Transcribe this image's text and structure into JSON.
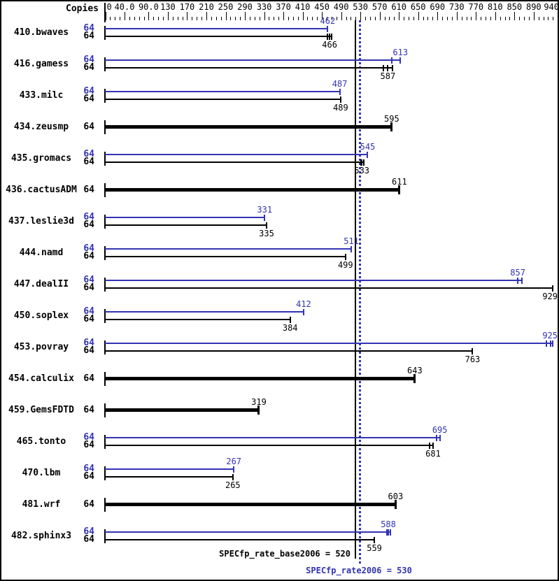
{
  "colors": {
    "peak_blue": "#3333b4",
    "black": "#000000",
    "background": "#ffffff"
  },
  "chart_data": {
    "type": "bar",
    "orientation": "horizontal",
    "copies_header": "Copies",
    "xlim": [
      0,
      940
    ],
    "grid": false,
    "minor_tick_step": 10,
    "x_tick_labels": [
      {
        "v": 0,
        "t": "0"
      },
      {
        "v": 40,
        "t": "40.0"
      },
      {
        "v": 90,
        "t": "90.0"
      },
      {
        "v": 130,
        "t": "130"
      },
      {
        "v": 170,
        "t": "170"
      },
      {
        "v": 210,
        "t": "210"
      },
      {
        "v": 250,
        "t": "250"
      },
      {
        "v": 290,
        "t": "290"
      },
      {
        "v": 330,
        "t": "330"
      },
      {
        "v": 370,
        "t": "370"
      },
      {
        "v": 410,
        "t": "410"
      },
      {
        "v": 450,
        "t": "450"
      },
      {
        "v": 490,
        "t": "490"
      },
      {
        "v": 530,
        "t": "530"
      },
      {
        "v": 570,
        "t": "570"
      },
      {
        "v": 610,
        "t": "610"
      },
      {
        "v": 650,
        "t": "650"
      },
      {
        "v": 690,
        "t": "690"
      },
      {
        "v": 730,
        "t": "730"
      },
      {
        "v": 770,
        "t": "770"
      },
      {
        "v": 810,
        "t": "810"
      },
      {
        "v": 850,
        "t": "850"
      },
      {
        "v": 890,
        "t": "890"
      },
      {
        "v": 940,
        "t": "940"
      }
    ],
    "series": [
      {
        "name": "peak (SPECfp_rate2006)",
        "color": "#3333b4"
      },
      {
        "name": "base (SPECfp_rate_base2006)",
        "color": "#000000"
      }
    ],
    "categories": [
      "410.bwaves",
      "416.gamess",
      "433.milc",
      "434.zeusmp",
      "435.gromacs",
      "436.cactusADM",
      "437.leslie3d",
      "444.namd",
      "447.dealII",
      "450.soplex",
      "453.povray",
      "454.calculix",
      "459.GemsFDTD",
      "465.tonto",
      "470.lbm",
      "481.wrf",
      "482.sphinx3"
    ],
    "rows": [
      {
        "name": "410.bwaves",
        "copies": 64,
        "peak": {
          "value": 462
        },
        "base": {
          "value": 466,
          "marks": [
            461,
            470
          ]
        }
      },
      {
        "name": "416.gamess",
        "copies": 64,
        "peak": {
          "value": 613,
          "marks": [
            595
          ]
        },
        "base": {
          "value": 587,
          "marks": [
            578,
            597
          ]
        }
      },
      {
        "name": "433.milc",
        "copies": 64,
        "peak": {
          "value": 487
        },
        "base": {
          "value": 489
        }
      },
      {
        "name": "434.zeusmp",
        "copies": 64,
        "base_only": true,
        "base": {
          "value": 595
        }
      },
      {
        "name": "435.gromacs",
        "copies": 64,
        "peak": {
          "value": 545
        },
        "base": {
          "value": 533,
          "marks": [
            531,
            537
          ]
        }
      },
      {
        "name": "436.cactusADM",
        "copies": 64,
        "base_only": true,
        "base": {
          "value": 611
        }
      },
      {
        "name": "437.leslie3d",
        "copies": 64,
        "peak": {
          "value": 331
        },
        "base": {
          "value": 335
        }
      },
      {
        "name": "444.namd",
        "copies": 64,
        "peak": {
          "value": 511
        },
        "base": {
          "value": 499
        }
      },
      {
        "name": "447.dealII",
        "copies": 64,
        "peak": {
          "value": 857,
          "marks": [
            866
          ]
        },
        "base": {
          "value": 929
        }
      },
      {
        "name": "450.soplex",
        "copies": 64,
        "peak": {
          "value": 412
        },
        "base": {
          "value": 384
        }
      },
      {
        "name": "453.povray",
        "copies": 64,
        "peak": {
          "value": 925,
          "marks": [
            917,
            930
          ]
        },
        "base": {
          "value": 763
        }
      },
      {
        "name": "454.calculix",
        "copies": 64,
        "base_only": true,
        "base": {
          "value": 643
        }
      },
      {
        "name": "459.GemsFDTD",
        "copies": 64,
        "base_only": true,
        "base": {
          "value": 319
        }
      },
      {
        "name": "465.tonto",
        "copies": 64,
        "peak": {
          "value": 695,
          "marks": [
            688
          ]
        },
        "base": {
          "value": 681,
          "marks": [
            674
          ]
        }
      },
      {
        "name": "470.lbm",
        "copies": 64,
        "peak": {
          "value": 267
        },
        "base": {
          "value": 265
        }
      },
      {
        "name": "481.wrf",
        "copies": 64,
        "base_only": true,
        "base": {
          "value": 603
        }
      },
      {
        "name": "482.sphinx3",
        "copies": 64,
        "peak": {
          "value": 588,
          "marks": [
            585,
            592
          ]
        },
        "base": {
          "value": 559
        }
      }
    ],
    "reference_lines": {
      "base": {
        "label": "SPECfp_rate_base2006 = 520",
        "value": 520,
        "color": "#000000",
        "style": "solid"
      },
      "peak": {
        "label": "SPECfp_rate2006 = 530",
        "value": 530,
        "color": "#3333b4",
        "style": "dotted"
      }
    }
  }
}
